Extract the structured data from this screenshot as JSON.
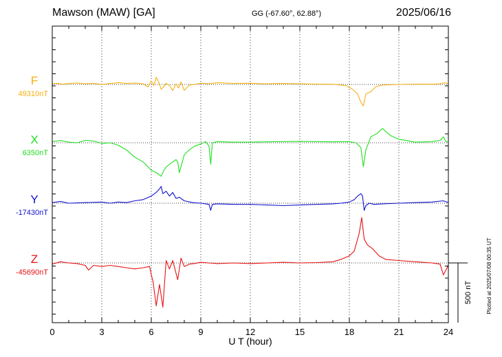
{
  "header": {
    "station": "Mawson (MAW)  [GA]",
    "coords": "GG (-67.60°,  62.88°)",
    "date": "2025/06/16"
  },
  "side_note": "Plotted at 2025/07/08 00:35 UT",
  "scale_bar": {
    "label": "500 nT",
    "value_nT": 500
  },
  "chart_data": {
    "type": "line",
    "title": "Mawson (MAW)  [GA]",
    "xlabel": "U T (hour)",
    "ylabel": "",
    "xlim": [
      0,
      24
    ],
    "x_ticks": [
      0,
      3,
      6,
      9,
      12,
      15,
      18,
      21,
      24
    ],
    "grid": true,
    "series": [
      {
        "name": "F",
        "baseline_label": "49310nT",
        "baseline_nT": 49310,
        "color": "#f5b010",
        "x": [
          0,
          0.3,
          0.6,
          1.0,
          1.5,
          2.0,
          2.5,
          3.0,
          3.5,
          4.0,
          4.5,
          5.0,
          5.5,
          5.8,
          6.0,
          6.15,
          6.3,
          6.45,
          6.6,
          6.75,
          6.9,
          7.1,
          7.3,
          7.5,
          7.65,
          7.8,
          8.0,
          8.3,
          8.6,
          9.0,
          9.5,
          10,
          11,
          12,
          13,
          14,
          15,
          16,
          17,
          17.8,
          18.2,
          18.5,
          18.7,
          18.85,
          19.0,
          19.3,
          19.6,
          20,
          21,
          22,
          23,
          23.5,
          23.8,
          24
        ],
        "values": [
          5,
          10,
          2,
          8,
          12,
          5,
          10,
          0,
          8,
          15,
          8,
          12,
          5,
          -20,
          30,
          -10,
          60,
          20,
          -40,
          -20,
          10,
          -10,
          -50,
          5,
          -30,
          20,
          -50,
          -5,
          0,
          10,
          5,
          15,
          8,
          10,
          5,
          8,
          5,
          3,
          2,
          -10,
          -40,
          -80,
          -150,
          -180,
          -80,
          -60,
          -20,
          -5,
          0,
          3,
          2,
          5,
          15,
          5
        ]
      },
      {
        "name": "X",
        "baseline_label": "6350nT",
        "baseline_nT": 6350,
        "color": "#1ee01e",
        "x": [
          0,
          0.5,
          1.0,
          1.5,
          2.0,
          2.5,
          3.0,
          3.5,
          4.0,
          4.5,
          5.0,
          5.5,
          6.0,
          6.3,
          6.6,
          6.8,
          7.0,
          7.3,
          7.5,
          7.6,
          7.7,
          8.0,
          8.3,
          8.6,
          9.0,
          9.3,
          9.5,
          9.6,
          9.7,
          10,
          11,
          12,
          13,
          14,
          15,
          16,
          17,
          18,
          18.4,
          18.7,
          18.85,
          19.0,
          19.3,
          19.7,
          20,
          20.5,
          21,
          22,
          23,
          23.5,
          23.7,
          23.85,
          24
        ],
        "values": [
          10,
          20,
          5,
          0,
          20,
          15,
          -5,
          0,
          -20,
          -60,
          -120,
          -160,
          -230,
          -250,
          -280,
          -220,
          -190,
          -160,
          -140,
          -160,
          -250,
          -100,
          -60,
          -30,
          -10,
          10,
          -30,
          -180,
          0,
          10,
          5,
          5,
          8,
          10,
          12,
          10,
          8,
          10,
          0,
          -40,
          -200,
          -60,
          50,
          80,
          120,
          60,
          30,
          5,
          10,
          20,
          50,
          10,
          5
        ]
      },
      {
        "name": "Y",
        "baseline_label": "-17430nT",
        "baseline_nT": -17430,
        "color": "#1010d0",
        "x": [
          0,
          0.5,
          1.0,
          2.0,
          3.0,
          3.5,
          4.0,
          4.5,
          5.0,
          5.5,
          6.0,
          6.3,
          6.5,
          6.6,
          6.7,
          6.9,
          7.1,
          7.3,
          7.5,
          7.7,
          8.0,
          8.5,
          9.0,
          9.5,
          9.6,
          9.7,
          10,
          11,
          12,
          13,
          14,
          15,
          16,
          17,
          17.5,
          18,
          18.3,
          18.5,
          18.7,
          18.8,
          18.9,
          19.0,
          19.2,
          19.5,
          20,
          21,
          22,
          23,
          23.7,
          24
        ],
        "values": [
          5,
          15,
          0,
          5,
          10,
          0,
          10,
          5,
          20,
          30,
          60,
          90,
          120,
          140,
          80,
          100,
          60,
          90,
          40,
          50,
          20,
          5,
          0,
          -10,
          -60,
          -10,
          -5,
          -10,
          -10,
          -15,
          -20,
          -15,
          -10,
          -5,
          0,
          10,
          30,
          60,
          80,
          60,
          -60,
          -20,
          0,
          -10,
          -5,
          0,
          5,
          10,
          20,
          5
        ]
      },
      {
        "name": "Z",
        "baseline_label": "-45690nT",
        "baseline_nT": -45690,
        "color": "#e81010",
        "x": [
          0,
          0.5,
          1.0,
          1.5,
          2.0,
          2.2,
          2.5,
          3.0,
          3.5,
          4.0,
          4.5,
          5.0,
          5.5,
          5.9,
          6.0,
          6.1,
          6.3,
          6.5,
          6.7,
          6.9,
          7.1,
          7.3,
          7.6,
          7.8,
          8.0,
          8.3,
          8.6,
          9.0,
          9.5,
          10,
          11,
          12,
          13,
          14,
          15,
          16,
          17,
          17.5,
          18,
          18.3,
          18.6,
          18.75,
          18.9,
          19.1,
          19.4,
          19.8,
          20.2,
          21,
          22,
          23,
          23.5,
          23.7,
          23.85,
          24
        ],
        "values": [
          -10,
          10,
          0,
          -5,
          -20,
          -60,
          -20,
          -30,
          -20,
          -30,
          -40,
          -50,
          -40,
          -30,
          -100,
          -150,
          -360,
          -180,
          -370,
          20,
          -50,
          20,
          -140,
          40,
          -30,
          -10,
          -5,
          5,
          0,
          -5,
          0,
          -5,
          0,
          5,
          0,
          3,
          10,
          30,
          60,
          100,
          250,
          380,
          200,
          150,
          120,
          60,
          30,
          20,
          10,
          0,
          -10,
          -100,
          -60,
          -20
        ]
      }
    ]
  }
}
